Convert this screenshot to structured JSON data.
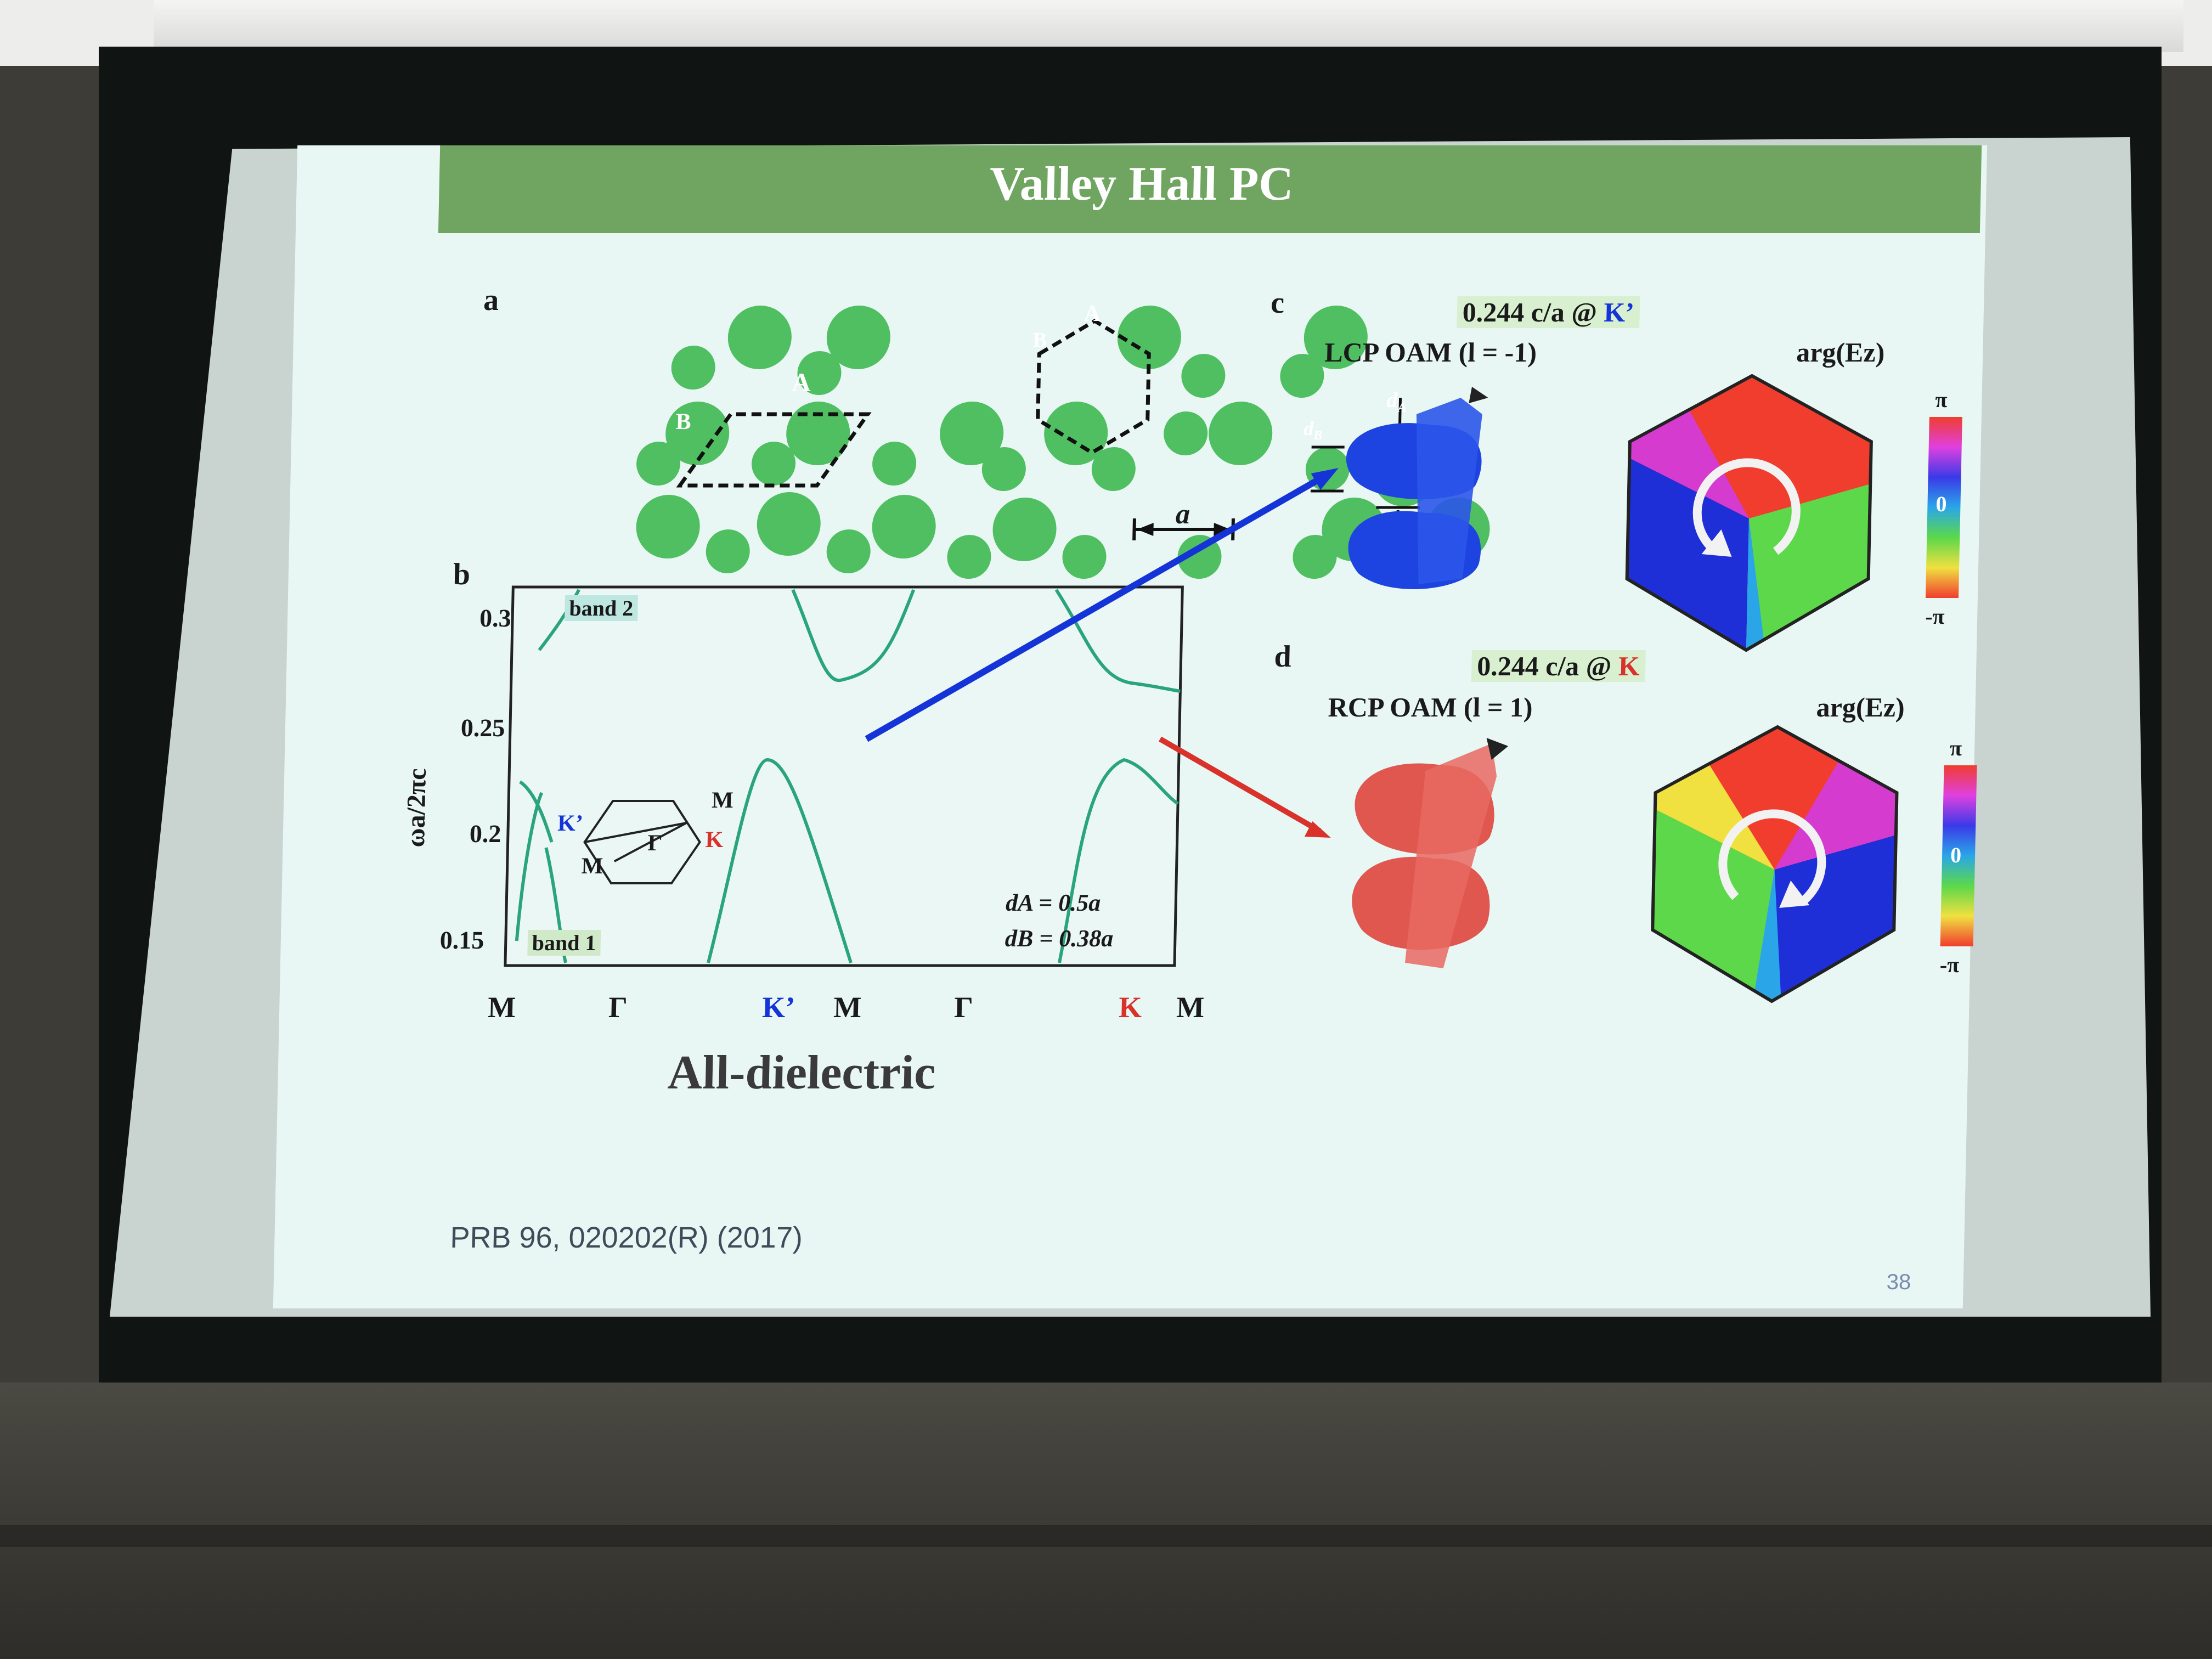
{
  "slide": {
    "title": "Valley Hall PC",
    "citation": "PRB 96, 020202(R) (2017)",
    "page_number": "38",
    "colors": {
      "header": "#6fa561",
      "slide_bg": "#e8f7f4",
      "circles": "#4fbf62",
      "k_prime": "#1534d8",
      "k": "#d8322a"
    }
  },
  "panel_a": {
    "label": "a",
    "site_A": "A",
    "site_B": "B",
    "lattice_constant": "a",
    "dA_label": "d",
    "dA_sub": "A",
    "dB_label": "d",
    "dB_sub": "B"
  },
  "panel_b": {
    "label": "b",
    "band2_label": "band 2",
    "band1_label": "band 1",
    "ylabel": "ωa/2πc",
    "yticks": [
      "0.3",
      "0.25",
      "0.2",
      "0.15"
    ],
    "xticks": [
      "M",
      "Γ",
      "K’",
      "M",
      "Γ",
      "K",
      "M"
    ],
    "bz": {
      "K_prime": "K’",
      "K": "K",
      "M_top": "M",
      "M_bottom": "M",
      "Gamma": "Γ"
    },
    "param1": "dA = 0.5a",
    "param2": "dB = 0.38a",
    "caption": "All-dielectric"
  },
  "panel_c": {
    "label": "c",
    "freq_prefix": "0.244 c/a @ ",
    "freq_point": "K’",
    "mode": "LCP OAM (l = -1)",
    "arg_label": "arg(Ez)",
    "cb_top": "π",
    "cb_mid": "0",
    "cb_bottom": "-π"
  },
  "panel_d": {
    "label": "d",
    "freq_prefix": "0.244 c/a @ ",
    "freq_point": "K",
    "mode": "RCP OAM (l = 1)",
    "arg_label": "arg(Ez)",
    "cb_top": "π",
    "cb_mid": "0",
    "cb_bottom": "-π"
  }
}
